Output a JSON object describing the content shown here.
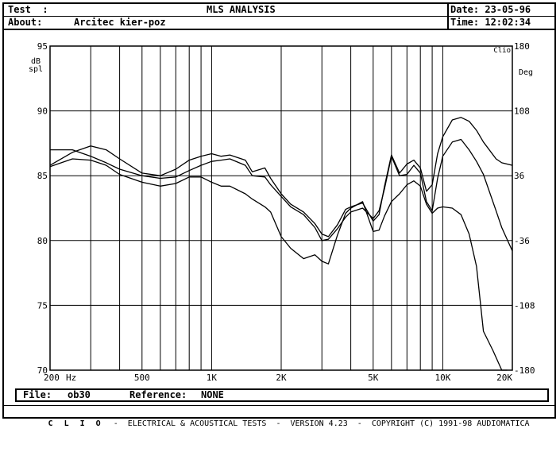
{
  "header": {
    "test_label": "Test  :",
    "title": "MLS ANALYSIS",
    "date_label": "Date:",
    "date_value": "23-05-96",
    "about_label": "About:",
    "about_value": "Arcitec kier-poz",
    "time_label": "Time:",
    "time_value": "12:02:34"
  },
  "footer": {
    "file_label": "File:",
    "file_value": "ob30",
    "reference_label": "Reference:",
    "reference_value": "NONE",
    "brand": "C L I O",
    "tagline": "-  ELECTRICAL & ACOUSTICAL TESTS  -  VERSION 4.23  -  COPYRIGHT (C) 1991-98 AUDIOMATICA"
  },
  "chart_data": {
    "type": "line",
    "xscale": "log",
    "xlim": [
      200,
      20000
    ],
    "ylim": [
      70,
      95
    ],
    "y2lim": [
      -180,
      180
    ],
    "ylabel_line1": "dB",
    "ylabel_line2": "spl",
    "y2label": "Deg",
    "corner_label": "Clio",
    "xunit": "Hz",
    "x_ticks": [
      {
        "value": 200,
        "label": "200"
      },
      {
        "value": 500,
        "label": "500"
      },
      {
        "value": 1000,
        "label": "1K"
      },
      {
        "value": 2000,
        "label": "2K"
      },
      {
        "value": 5000,
        "label": "5K"
      },
      {
        "value": 10000,
        "label": "10K"
      },
      {
        "value": 20000,
        "label": "20K"
      }
    ],
    "y_ticks": [
      {
        "value": 95,
        "label": "95"
      },
      {
        "value": 90,
        "label": "90"
      },
      {
        "value": 85,
        "label": "85"
      },
      {
        "value": 80,
        "label": "80"
      },
      {
        "value": 75,
        "label": "75"
      },
      {
        "value": 70,
        "label": "70"
      }
    ],
    "y2_ticks": [
      {
        "value": 180,
        "label": "180"
      },
      {
        "value": 108,
        "label": "108"
      },
      {
        "value": 36,
        "label": "36"
      },
      {
        "value": -36,
        "label": "-36"
      },
      {
        "value": -108,
        "label": "-108"
      },
      {
        "value": -180,
        "label": "-180"
      }
    ],
    "grid": true,
    "series": [
      {
        "x": [
          200,
          250,
          300,
          350,
          400,
          500,
          600,
          700,
          800,
          900,
          1000,
          1100,
          1200,
          1400,
          1500,
          1700,
          1800,
          2000,
          2200,
          2500,
          2800,
          3000,
          3200,
          3500,
          3800,
          4000,
          4500,
          5000,
          5300,
          5600,
          6000,
          6500,
          7000,
          7500,
          8000,
          8500,
          9000,
          9500,
          10000,
          11000,
          12000,
          13000,
          14000,
          15000,
          17000,
          18000,
          20000
        ],
        "values": [
          85.8,
          86.8,
          87.3,
          87.0,
          86.3,
          85.2,
          85.0,
          85.5,
          86.2,
          86.5,
          86.7,
          86.5,
          86.6,
          86.2,
          85.3,
          85.6,
          84.8,
          83.6,
          82.8,
          82.2,
          81.3,
          80.5,
          80.3,
          81.2,
          82.4,
          82.6,
          82.9,
          81.5,
          82.0,
          84.2,
          86.6,
          85.2,
          85.9,
          86.2,
          85.6,
          83.8,
          84.3,
          86.7,
          88.0,
          89.3,
          89.5,
          89.2,
          88.5,
          87.6,
          86.3,
          86.0,
          85.8
        ]
      },
      {
        "x": [
          200,
          250,
          300,
          350,
          400,
          500,
          600,
          700,
          800,
          900,
          1000,
          1100,
          1200,
          1400,
          1500,
          1700,
          1800,
          2000,
          2200,
          2500,
          2800,
          3000,
          3200,
          3500,
          3800,
          4000,
          4500,
          5000,
          5300,
          5600,
          6000,
          6500,
          7000,
          7500,
          8000,
          8500,
          9000,
          9500,
          10000,
          11000,
          12000,
          13000,
          14000,
          15000,
          17000,
          18000,
          20000
        ],
        "values": [
          87.0,
          87.0,
          86.5,
          86.0,
          85.5,
          85.0,
          84.8,
          84.9,
          85.4,
          85.8,
          86.1,
          86.2,
          86.3,
          85.8,
          85.0,
          84.9,
          84.3,
          83.4,
          82.6,
          82.0,
          81.0,
          80.0,
          80.1,
          80.9,
          81.8,
          82.2,
          82.5,
          81.7,
          82.3,
          84.0,
          86.5,
          85.0,
          85.1,
          85.8,
          85.2,
          83.0,
          82.3,
          84.8,
          86.5,
          87.6,
          87.8,
          87.0,
          86.1,
          85.1,
          82.3,
          81.0,
          79.2
        ]
      },
      {
        "x": [
          200,
          250,
          300,
          350,
          400,
          500,
          600,
          700,
          800,
          900,
          1000,
          1100,
          1200,
          1400,
          1500,
          1700,
          1800,
          2000,
          2200,
          2500,
          2800,
          3000,
          3200,
          3500,
          3800,
          4000,
          4500,
          5000,
          5300,
          5600,
          6000,
          6500,
          7000,
          7500,
          8000,
          8500,
          9000,
          9500,
          10000,
          11000,
          12000,
          13000,
          14000,
          15000,
          16500,
          18000,
          19000
        ],
        "values": [
          85.7,
          86.3,
          86.2,
          85.8,
          85.1,
          84.5,
          84.2,
          84.4,
          84.9,
          84.9,
          84.5,
          84.2,
          84.2,
          83.6,
          83.2,
          82.6,
          82.2,
          80.3,
          79.4,
          78.6,
          78.9,
          78.4,
          78.2,
          80.4,
          82.1,
          82.5,
          83.0,
          80.7,
          80.8,
          81.9,
          83.0,
          83.6,
          84.3,
          84.6,
          84.2,
          82.8,
          82.1,
          82.5,
          82.6,
          82.5,
          82.0,
          80.5,
          78.0,
          73.0,
          71.5,
          70.0,
          69.5
        ]
      }
    ]
  }
}
